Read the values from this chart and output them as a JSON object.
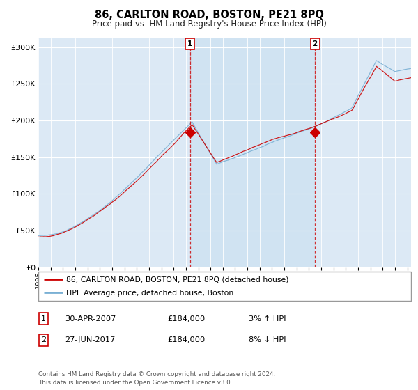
{
  "title": "86, CARLTON ROAD, BOSTON, PE21 8PQ",
  "subtitle": "Price paid vs. HM Land Registry's House Price Index (HPI)",
  "ylabel_ticks": [
    "£0",
    "£50K",
    "£100K",
    "£150K",
    "£200K",
    "£250K",
    "£300K"
  ],
  "ytick_vals": [
    0,
    50000,
    100000,
    150000,
    200000,
    250000,
    300000
  ],
  "ylim": [
    0,
    312000
  ],
  "xlim_start": 1995.0,
  "xlim_end": 2025.3,
  "bg_color": "#dce9f5",
  "shade_color": "#c8dff0",
  "line_color_house": "#cc0000",
  "line_color_hpi": "#7ab0d4",
  "ann1_x": 2007.33,
  "ann1_y": 184000,
  "ann2_x": 2017.5,
  "ann2_y": 184000,
  "legend_house": "86, CARLTON ROAD, BOSTON, PE21 8PQ (detached house)",
  "legend_hpi": "HPI: Average price, detached house, Boston",
  "footer": "Contains HM Land Registry data © Crown copyright and database right 2024.\nThis data is licensed under the Open Government Licence v3.0.",
  "table_rows": [
    {
      "num": "1",
      "date": "30-APR-2007",
      "price": "£184,000",
      "pct": "3% ↑ HPI"
    },
    {
      "num": "2",
      "date": "27-JUN-2017",
      "price": "£184,000",
      "pct": "8% ↓ HPI"
    }
  ]
}
